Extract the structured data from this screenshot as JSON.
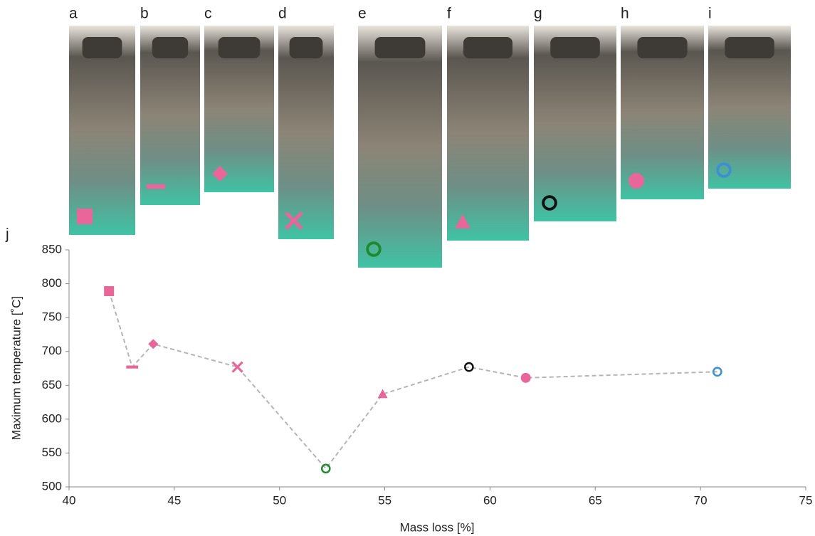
{
  "photo_panels": [
    "a",
    "b",
    "c",
    "d",
    "e",
    "f",
    "g",
    "h",
    "i"
  ],
  "chart_data": {
    "type": "line",
    "panel_label": "j",
    "x_label": "Mass loss [%]",
    "y_label": "Maximum temperature [˚C]",
    "x": [
      41.9,
      43.0,
      44.0,
      48.0,
      52.2,
      54.9,
      59.0,
      61.7,
      70.8
    ],
    "values": [
      789,
      677,
      711,
      677,
      527,
      637,
      677,
      661,
      670
    ],
    "markers": [
      "square",
      "dash",
      "diamond",
      "cross",
      "ring",
      "triangle",
      "ring",
      "circle",
      "ring"
    ],
    "colors": [
      "#e8669a",
      "#e8669a",
      "#e8669a",
      "#e8669a",
      "#1e8a2e",
      "#e8669a",
      "#111111",
      "#e8669a",
      "#3b8fd4"
    ],
    "line_color": "#b5b5b5",
    "line_style": "dashed",
    "xlim": [
      40,
      75
    ],
    "xticks": [
      40,
      45,
      50,
      55,
      60,
      65,
      70,
      75
    ],
    "ylim": [
      500,
      850
    ],
    "yticks": [
      500,
      550,
      600,
      650,
      700,
      750,
      800,
      850
    ]
  }
}
